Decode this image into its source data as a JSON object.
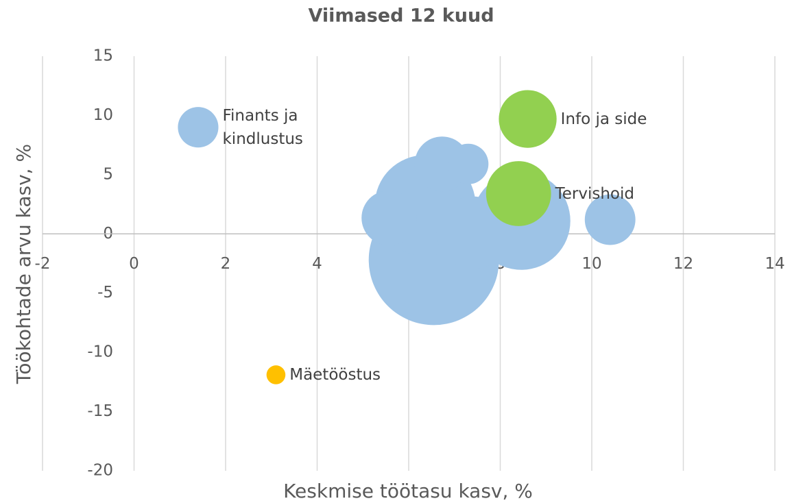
{
  "chart_data": {
    "type": "bubble",
    "title": "Viimased 12 kuud",
    "x_label": "Keskmise töötasu kasv, %",
    "y_label": "Töökohtade arvu kasv, %",
    "xlim": [
      -2,
      14
    ],
    "xticks": [
      -2,
      0,
      2,
      4,
      6,
      8,
      10,
      12,
      14
    ],
    "ylim": [
      -20,
      15
    ],
    "yticks": [
      -20,
      -15,
      -10,
      -5,
      0,
      5,
      10,
      15
    ],
    "grid": true,
    "series": [
      {
        "x": [
          6.55,
          8.46,
          6.36,
          7.4,
          5.57,
          6.73,
          7.3,
          10.4,
          1.4,
          8.4,
          8.6,
          3.1
        ],
        "values": [
          -2.2,
          1.1,
          2.4,
          0.1,
          1.35,
          5.9,
          5.9,
          1.2,
          9.0,
          3.4,
          9.7,
          -11.9
        ],
        "sizes": [
          9.0,
          5.1,
          5.4,
          2.8,
          1.6,
          1.6,
          0.87,
          1.36,
          0.87,
          2.24,
          1.77,
          0.19
        ],
        "colors": [
          "#9dc3e6",
          "#9dc3e6",
          "#9dc3e6",
          "#9dc3e6",
          "#9dc3e6",
          "#9dc3e6",
          "#9dc3e6",
          "#9dc3e6",
          "#9dc3e6",
          "#92d050",
          "#92d050",
          "#ffc000"
        ],
        "labels": [
          null,
          null,
          null,
          null,
          null,
          null,
          null,
          null,
          "Finants ja kindlustus",
          "Tervishoid",
          "Info ja side",
          "Mäetööstus"
        ]
      }
    ]
  }
}
